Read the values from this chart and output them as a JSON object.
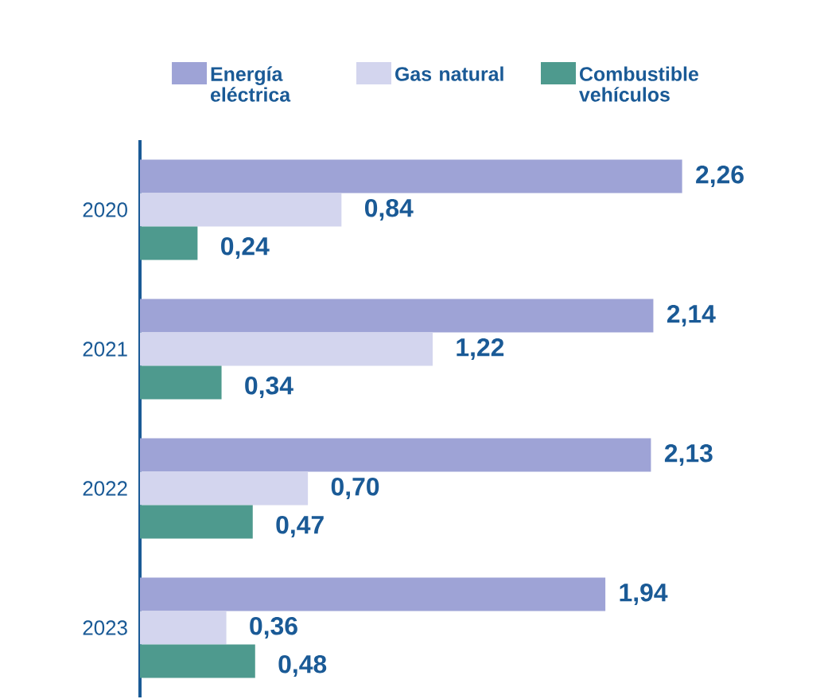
{
  "chart_data": {
    "type": "bar",
    "orientation": "horizontal",
    "categories": [
      "2020",
      "2021",
      "2022",
      "2023"
    ],
    "legend": "top",
    "series": [
      {
        "name": "Energía eléctrica",
        "color": "#9ea3d6",
        "values": [
          2.26,
          2.14,
          2.13,
          1.94
        ],
        "value_labels": [
          "2,26",
          "2,14",
          "2,13",
          "1,94"
        ]
      },
      {
        "name": "Gas natural",
        "color": "#d3d5ee",
        "values": [
          0.84,
          1.22,
          0.7,
          0.36
        ],
        "value_labels": [
          "0,84",
          "1,22",
          "0,70",
          "0,36"
        ]
      },
      {
        "name": "Combustible vehículos",
        "color": "#4e9a8e",
        "values": [
          0.24,
          0.34,
          0.47,
          0.48
        ],
        "value_labels": [
          "0,24",
          "0,34",
          "0,47",
          "0,48"
        ]
      }
    ]
  }
}
